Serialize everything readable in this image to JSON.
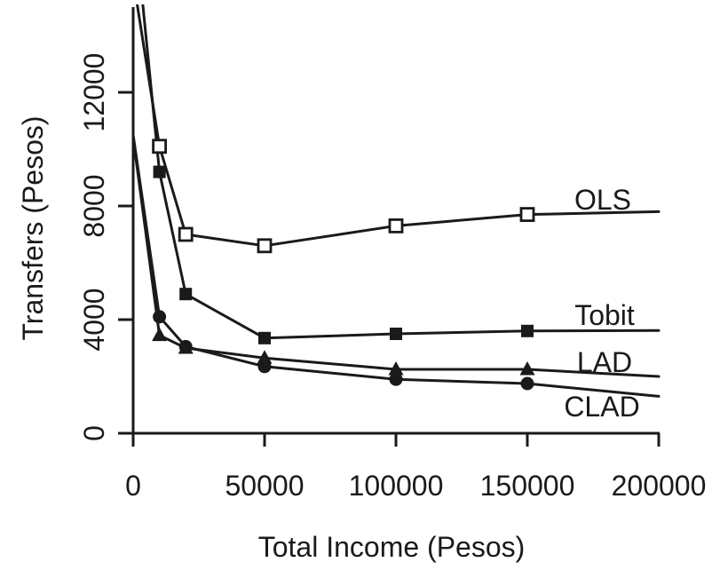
{
  "figure": {
    "background": "#ffffff",
    "ink_color": "#1a1a1a"
  },
  "chart_data": {
    "type": "line",
    "title": "",
    "xlabel": "Total Income (Pesos)",
    "ylabel": "Transfers (Pesos)",
    "xlim": [
      0,
      200000
    ],
    "ylim": [
      0,
      15000
    ],
    "grid": false,
    "legend_position": "inline-labels-right",
    "x_ticks": [
      0,
      50000,
      100000,
      150000,
      200000
    ],
    "x_tick_labels": [
      "0",
      "50000",
      "100000",
      "150000",
      "200000"
    ],
    "y_ticks": [
      0,
      4000,
      8000,
      12000
    ],
    "y_tick_labels": [
      "0",
      "4000",
      "8000",
      "12000"
    ],
    "x": [
      0,
      10000,
      20000,
      50000,
      100000,
      150000,
      200000
    ],
    "series": [
      {
        "name": "OLS",
        "marker": "open-square",
        "values": [
          16000,
          10100,
          7000,
          6600,
          7300,
          7700,
          7800
        ],
        "label": {
          "text": "OLS",
          "x": 679,
          "y": 236
        }
      },
      {
        "name": "Tobit",
        "marker": "filled-square",
        "values": [
          18500,
          9200,
          4900,
          3350,
          3500,
          3600,
          3620
        ],
        "label": {
          "text": "Tobit",
          "x": 681,
          "y": 366
        }
      },
      {
        "name": "LAD",
        "marker": "filled-triangle",
        "values": [
          10400,
          3450,
          3000,
          2650,
          2250,
          2250,
          2000
        ],
        "label": {
          "text": "LAD",
          "x": 681,
          "y": 419
        }
      },
      {
        "name": "CLAD",
        "marker": "filled-circle",
        "values": [
          10500,
          4100,
          3050,
          2350,
          1900,
          1750,
          1300
        ],
        "label": {
          "text": "CLAD",
          "x": 678,
          "y": 469
        }
      }
    ],
    "marker_x_subset": [
      10000,
      20000,
      50000,
      100000,
      150000
    ]
  }
}
